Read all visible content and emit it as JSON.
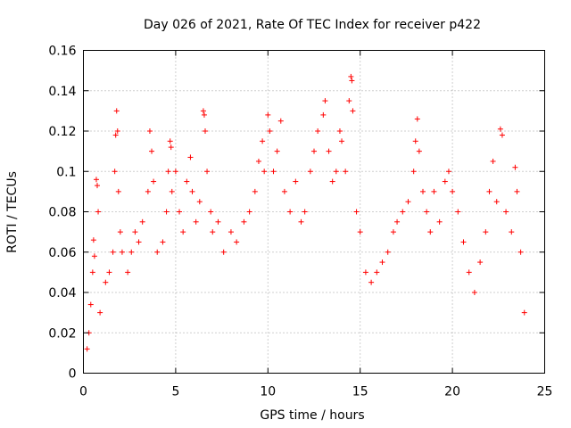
{
  "chart_data": {
    "type": "scatter",
    "title": "Day 026 of 2021, Rate Of TEC Index for receiver p422",
    "xlabel": "GPS time / hours",
    "ylabel": "ROTI / TECUs",
    "xlim": [
      0,
      25
    ],
    "ylim": [
      0,
      0.16
    ],
    "x_ticks": [
      0,
      5,
      10,
      15,
      20,
      25
    ],
    "x_tick_labels": [
      "0",
      "5",
      "10",
      "15",
      "20",
      "25"
    ],
    "y_ticks": [
      0,
      0.02,
      0.04,
      0.06,
      0.08,
      0.1,
      0.12,
      0.14,
      0.16
    ],
    "y_tick_labels": [
      "0",
      "0.02",
      "0.04",
      "0.06",
      "0.08",
      "0.1",
      "0.12",
      "0.14",
      "0.16"
    ],
    "grid": true,
    "marker": "+",
    "marker_color": "#ff0000",
    "series": [
      {
        "name": "ROTI",
        "points": [
          [
            0.2,
            0.012
          ],
          [
            0.3,
            0.02
          ],
          [
            0.4,
            0.034
          ],
          [
            0.5,
            0.05
          ],
          [
            0.55,
            0.066
          ],
          [
            0.6,
            0.058
          ],
          [
            0.7,
            0.096
          ],
          [
            0.75,
            0.093
          ],
          [
            0.8,
            0.08
          ],
          [
            0.9,
            0.03
          ],
          [
            1.2,
            0.045
          ],
          [
            1.4,
            0.05
          ],
          [
            1.6,
            0.06
          ],
          [
            1.7,
            0.1
          ],
          [
            1.75,
            0.118
          ],
          [
            1.8,
            0.13
          ],
          [
            1.85,
            0.12
          ],
          [
            1.9,
            0.09
          ],
          [
            2.0,
            0.07
          ],
          [
            2.1,
            0.06
          ],
          [
            2.4,
            0.05
          ],
          [
            2.6,
            0.06
          ],
          [
            2.8,
            0.07
          ],
          [
            3.0,
            0.065
          ],
          [
            3.2,
            0.075
          ],
          [
            3.5,
            0.09
          ],
          [
            3.6,
            0.12
          ],
          [
            3.7,
            0.11
          ],
          [
            3.8,
            0.095
          ],
          [
            4.0,
            0.06
          ],
          [
            4.3,
            0.065
          ],
          [
            4.5,
            0.08
          ],
          [
            4.6,
            0.1
          ],
          [
            4.7,
            0.115
          ],
          [
            4.75,
            0.112
          ],
          [
            4.8,
            0.09
          ],
          [
            5.0,
            0.1
          ],
          [
            5.2,
            0.08
          ],
          [
            5.4,
            0.07
          ],
          [
            5.6,
            0.095
          ],
          [
            5.8,
            0.107
          ],
          [
            5.9,
            0.09
          ],
          [
            6.1,
            0.075
          ],
          [
            6.3,
            0.085
          ],
          [
            6.5,
            0.13
          ],
          [
            6.55,
            0.128
          ],
          [
            6.6,
            0.12
          ],
          [
            6.7,
            0.1
          ],
          [
            6.9,
            0.08
          ],
          [
            7.0,
            0.07
          ],
          [
            7.3,
            0.075
          ],
          [
            7.6,
            0.06
          ],
          [
            8.0,
            0.07
          ],
          [
            8.3,
            0.065
          ],
          [
            8.7,
            0.075
          ],
          [
            9.0,
            0.08
          ],
          [
            9.3,
            0.09
          ],
          [
            9.5,
            0.105
          ],
          [
            9.7,
            0.115
          ],
          [
            9.8,
            0.1
          ],
          [
            10.0,
            0.128
          ],
          [
            10.1,
            0.12
          ],
          [
            10.3,
            0.1
          ],
          [
            10.5,
            0.11
          ],
          [
            10.7,
            0.125
          ],
          [
            10.9,
            0.09
          ],
          [
            11.2,
            0.08
          ],
          [
            11.5,
            0.095
          ],
          [
            11.8,
            0.075
          ],
          [
            12.0,
            0.08
          ],
          [
            12.3,
            0.1
          ],
          [
            12.5,
            0.11
          ],
          [
            12.7,
            0.12
          ],
          [
            13.0,
            0.128
          ],
          [
            13.1,
            0.135
          ],
          [
            13.3,
            0.11
          ],
          [
            13.5,
            0.095
          ],
          [
            13.7,
            0.1
          ],
          [
            13.9,
            0.12
          ],
          [
            14.0,
            0.115
          ],
          [
            14.2,
            0.1
          ],
          [
            14.4,
            0.135
          ],
          [
            14.5,
            0.147
          ],
          [
            14.55,
            0.145
          ],
          [
            14.6,
            0.13
          ],
          [
            14.8,
            0.08
          ],
          [
            15.0,
            0.07
          ],
          [
            15.3,
            0.05
          ],
          [
            15.6,
            0.045
          ],
          [
            15.9,
            0.05
          ],
          [
            16.2,
            0.055
          ],
          [
            16.5,
            0.06
          ],
          [
            16.8,
            0.07
          ],
          [
            17.0,
            0.075
          ],
          [
            17.3,
            0.08
          ],
          [
            17.6,
            0.085
          ],
          [
            17.9,
            0.1
          ],
          [
            18.0,
            0.115
          ],
          [
            18.1,
            0.126
          ],
          [
            18.2,
            0.11
          ],
          [
            18.4,
            0.09
          ],
          [
            18.6,
            0.08
          ],
          [
            18.8,
            0.07
          ],
          [
            19.0,
            0.09
          ],
          [
            19.3,
            0.075
          ],
          [
            19.6,
            0.095
          ],
          [
            19.8,
            0.1
          ],
          [
            20.0,
            0.09
          ],
          [
            20.3,
            0.08
          ],
          [
            20.6,
            0.065
          ],
          [
            20.9,
            0.05
          ],
          [
            21.2,
            0.04
          ],
          [
            21.5,
            0.055
          ],
          [
            21.8,
            0.07
          ],
          [
            22.0,
            0.09
          ],
          [
            22.2,
            0.105
          ],
          [
            22.4,
            0.085
          ],
          [
            22.6,
            0.121
          ],
          [
            22.7,
            0.118
          ],
          [
            22.9,
            0.08
          ],
          [
            23.2,
            0.07
          ],
          [
            23.4,
            0.102
          ],
          [
            23.5,
            0.09
          ],
          [
            23.7,
            0.06
          ],
          [
            23.9,
            0.03
          ]
        ]
      }
    ]
  }
}
